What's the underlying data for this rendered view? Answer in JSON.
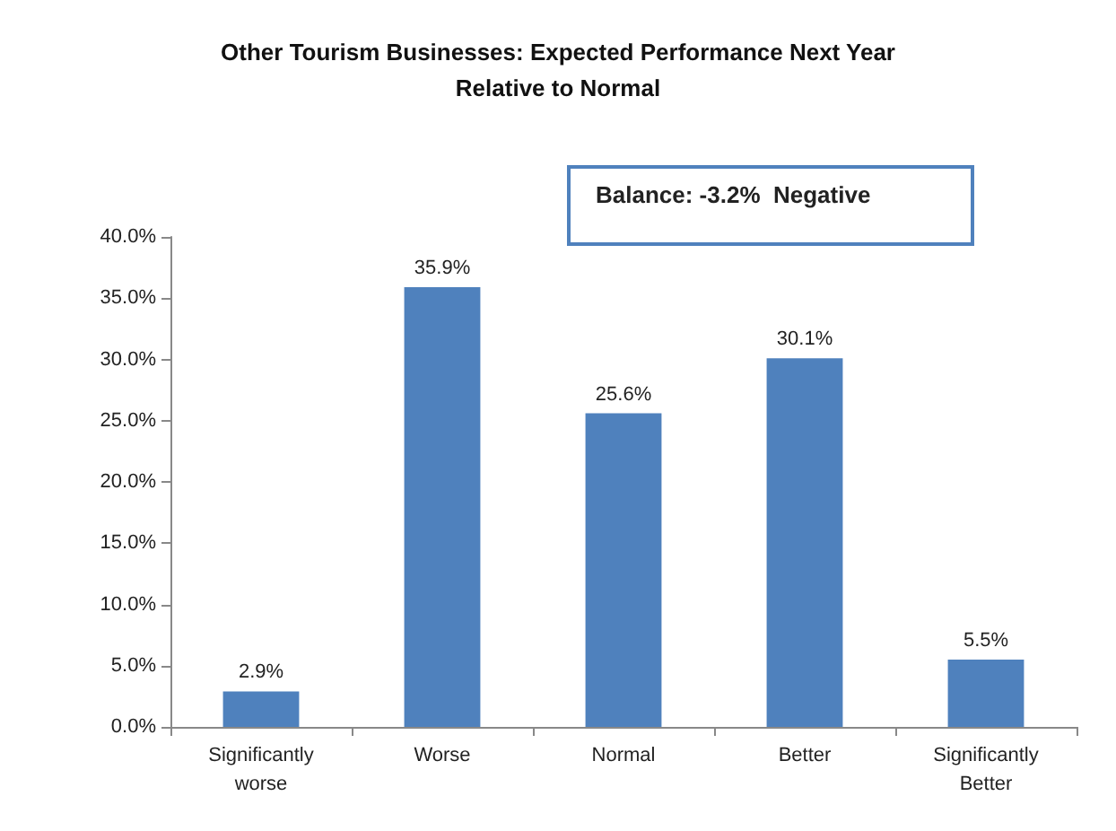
{
  "chart_data": {
    "type": "bar",
    "title": "Other Tourism Businesses: Expected Performance Next Year\nRelative to Normal",
    "categories": [
      "Significantly\nworse",
      "Worse",
      "Normal",
      "Better",
      "Significantly\nBetter"
    ],
    "values": [
      2.9,
      35.9,
      25.6,
      30.1,
      5.5
    ],
    "value_labels": [
      "2.9%",
      "35.9%",
      "25.6%",
      "30.1%",
      "5.5%"
    ],
    "color": "#4f81bd",
    "ylim": [
      0,
      40
    ],
    "yticks": [
      {
        "value": 0,
        "label": "0.0%"
      },
      {
        "value": 5,
        "label": "5.0%"
      },
      {
        "value": 10,
        "label": "10.0%"
      },
      {
        "value": 15,
        "label": "15.0%"
      },
      {
        "value": 20,
        "label": "20.0%"
      },
      {
        "value": 25,
        "label": "25.0%"
      },
      {
        "value": 30,
        "label": "30.0%"
      },
      {
        "value": 35,
        "label": "35.0%"
      },
      {
        "value": 40,
        "label": "40.0%"
      }
    ],
    "grid": false,
    "annotations": [
      "Balance: -3.2%  Negative"
    ]
  }
}
